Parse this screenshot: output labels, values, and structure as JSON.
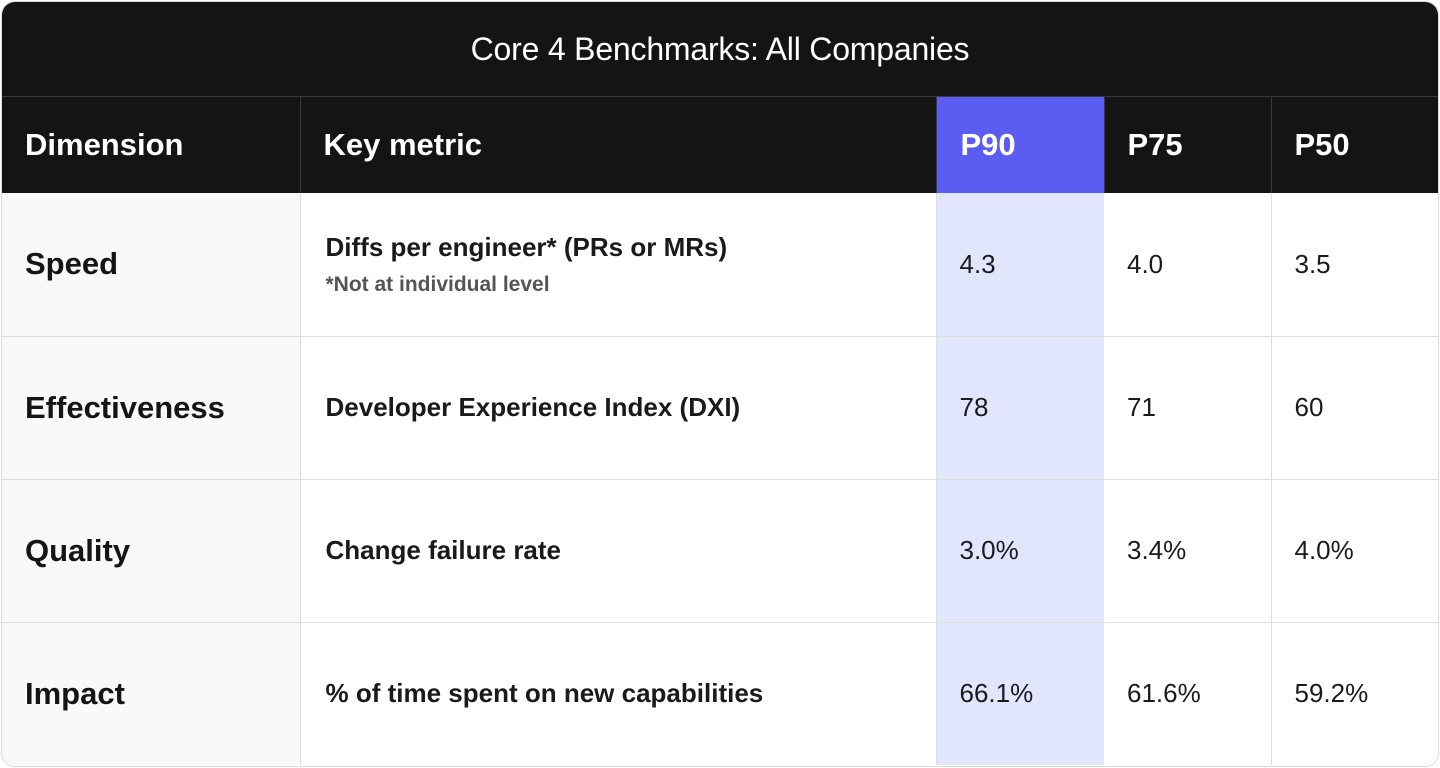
{
  "title": "Core 4 Benchmarks: All Companies",
  "columns": {
    "dimension": "Dimension",
    "metric": "Key metric",
    "p90": "P90",
    "p75": "P75",
    "p50": "P50"
  },
  "rows": [
    {
      "dimension": "Speed",
      "metric": "Diffs per engineer* (PRs or MRs)",
      "note": "*Not at individual level",
      "p90": "4.3",
      "p75": "4.0",
      "p50": "3.5"
    },
    {
      "dimension": "Effectiveness",
      "metric": "Developer Experience Index (DXI)",
      "p90": "78",
      "p75": "71",
      "p50": "60"
    },
    {
      "dimension": "Quality",
      "metric": "Change failure rate",
      "p90": "3.0%",
      "p75": "3.4%",
      "p50": "4.0%"
    },
    {
      "dimension": "Impact",
      "metric": "% of time spent on new capabilities",
      "p90": "66.1%",
      "p75": "61.6%",
      "p50": "59.2%"
    }
  ],
  "colors": {
    "header_bg": "#141414",
    "highlight_header": "#5b5cf0",
    "highlight_cell": "#e2e6fd"
  }
}
